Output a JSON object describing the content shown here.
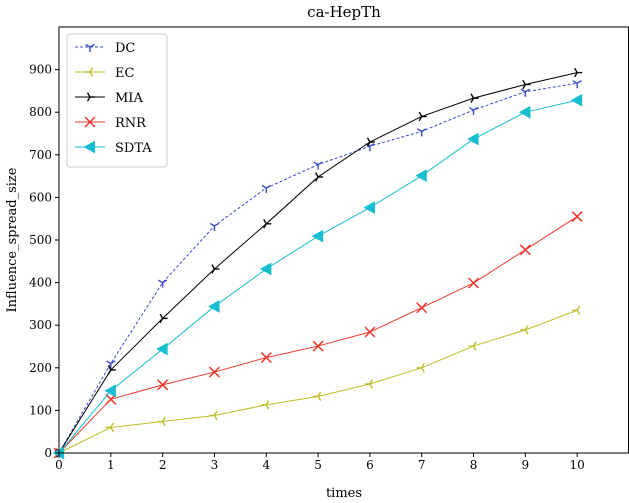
{
  "chart_data": {
    "type": "line",
    "title": "ca-HepTh",
    "xlabel": "times",
    "ylabel": "Influence_spread_size",
    "xlim": [
      0,
      11
    ],
    "ylim": [
      0,
      1000
    ],
    "xticks": [
      0,
      1,
      2,
      3,
      4,
      5,
      6,
      7,
      8,
      9,
      10
    ],
    "yticks": [
      0,
      100,
      200,
      300,
      400,
      500,
      600,
      700,
      800,
      900
    ],
    "grid": false,
    "legend_position": "top-left",
    "x": [
      0,
      1,
      2,
      3,
      4,
      5,
      6,
      7,
      8,
      9,
      10
    ],
    "series": [
      {
        "name": "DC",
        "values": [
          0,
          210,
          400,
          533,
          622,
          677,
          720,
          755,
          805,
          848,
          868
        ],
        "color": "#3b4bc8",
        "marker": "tri_down",
        "dashed": true
      },
      {
        "name": "EC",
        "values": [
          0,
          60,
          74,
          88,
          113,
          133,
          162,
          200,
          251,
          289,
          335
        ],
        "color": "#bcbd22",
        "marker": "tri_left",
        "dashed": false
      },
      {
        "name": "MIA",
        "values": [
          0,
          195,
          316,
          432,
          538,
          648,
          730,
          790,
          833,
          865,
          893
        ],
        "color": "#000000",
        "marker": "tri_right",
        "dashed": false
      },
      {
        "name": "RNR",
        "values": [
          0,
          126,
          160,
          190,
          224,
          251,
          284,
          341,
          399,
          477,
          555
        ],
        "color": "#e8392f",
        "marker": "x",
        "dashed": false
      },
      {
        "name": "SDTA",
        "values": [
          0,
          146,
          244,
          344,
          432,
          509,
          576,
          651,
          737,
          800,
          828
        ],
        "color": "#17becf",
        "marker": "triangle_left",
        "dashed": false
      }
    ]
  }
}
